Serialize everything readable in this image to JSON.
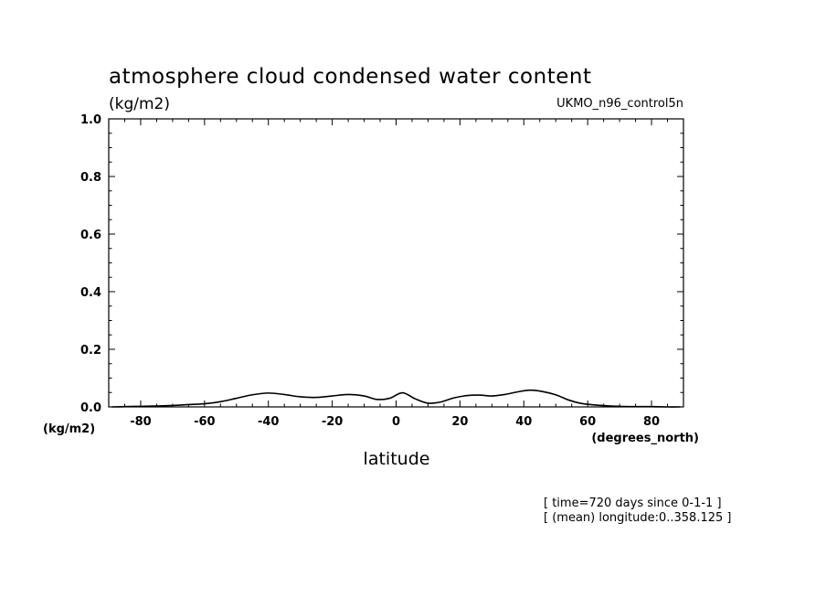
{
  "chart_data": {
    "type": "line",
    "title": "atmosphere cloud condensed water content",
    "title_units": "(kg/m2)",
    "model": "UKMO_n96_control5n",
    "xlabel": "latitude",
    "xunits": "(degrees_north)",
    "yunits": "(kg/m2)",
    "xlim": [
      -90,
      90
    ],
    "ylim": [
      0,
      1.0
    ],
    "x_ticks": [
      "-80",
      "-60",
      "-40",
      "-20",
      "0",
      "20",
      "40",
      "60",
      "80"
    ],
    "y_ticks": [
      "0.0",
      "0.2",
      "0.4",
      "0.6",
      "0.8",
      "1.0"
    ],
    "grid": false,
    "legend": "none",
    "notes": [
      "[ time=720 days since 0-1-1 ]",
      "[ (mean) longitude:0..358.125 ]"
    ],
    "series": [
      {
        "x": [
          -89,
          -85,
          -80,
          -75,
          -70,
          -65,
          -60,
          -55,
          -50,
          -45,
          -40,
          -35,
          -30,
          -25,
          -20,
          -15,
          -10,
          -6,
          -2,
          2,
          6,
          10,
          14,
          18,
          22,
          26,
          30,
          34,
          38,
          42,
          46,
          50,
          54,
          58,
          62,
          66,
          70,
          75,
          80,
          85,
          89
        ],
        "y": [
          0.0,
          0.001,
          0.002,
          0.003,
          0.005,
          0.008,
          0.011,
          0.018,
          0.03,
          0.042,
          0.048,
          0.043,
          0.035,
          0.033,
          0.038,
          0.043,
          0.038,
          0.026,
          0.03,
          0.049,
          0.028,
          0.013,
          0.017,
          0.031,
          0.039,
          0.041,
          0.038,
          0.043,
          0.052,
          0.058,
          0.053,
          0.042,
          0.024,
          0.012,
          0.007,
          0.004,
          0.002,
          0.001,
          0.001,
          0.0,
          0.0
        ]
      }
    ]
  }
}
